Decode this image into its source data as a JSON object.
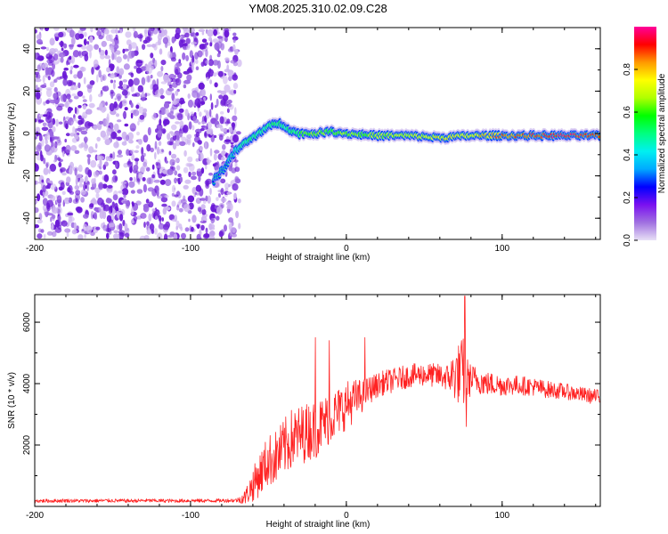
{
  "title": "YM08.2025.310.02.09.C28",
  "colors": {
    "snr_line": "#ff2222",
    "speckle_dark": "#6a18d6",
    "speckle_light": "#cdb4f0",
    "axis": "#000000",
    "colormap": [
      "#e8e0f6",
      "#a070e0",
      "#7a10f0",
      "#0000ff",
      "#00aaff",
      "#00f0f0",
      "#00ff80",
      "#00ff00",
      "#b0ff00",
      "#ffff00",
      "#ff9900",
      "#ff0000",
      "#ff0099"
    ]
  },
  "chart_data": [
    {
      "type": "heatmap",
      "name": "spectrogram",
      "xlabel": "Height of straight line (km)",
      "ylabel": "Frequency (Hz)",
      "xlim": [
        -200,
        163
      ],
      "ylim": [
        -50,
        50
      ],
      "xticks": [
        -200,
        -100,
        0,
        100
      ],
      "xtick_labels": [
        "-200",
        "-100",
        "0",
        "100"
      ],
      "yticks": [
        -40,
        -20,
        0,
        20,
        40
      ],
      "ytick_labels": [
        "-40",
        "-20",
        "0",
        "20",
        "40"
      ],
      "noise_region_x": [
        -200,
        -72
      ],
      "signal_track": {
        "x": [
          -85,
          -78,
          -72,
          -66,
          -60,
          -55,
          -50,
          -45,
          -40,
          -35,
          -30,
          -20,
          -10,
          0,
          20,
          40,
          60,
          80,
          100,
          120,
          140,
          163
        ],
        "freq": [
          -22,
          -16,
          -9,
          -5,
          -2,
          1,
          3,
          5,
          4,
          1,
          0,
          0,
          1,
          0,
          -1,
          -1,
          -2,
          -1,
          -1,
          -1,
          -1,
          -1
        ],
        "amplitude": [
          0.25,
          0.3,
          0.35,
          0.45,
          0.5,
          0.45,
          0.5,
          0.5,
          0.45,
          0.5,
          0.55,
          0.65,
          0.6,
          0.65,
          0.65,
          0.7,
          0.75,
          0.75,
          0.85,
          0.9,
          0.95,
          0.9
        ]
      },
      "colorbar": {
        "label": "Normalized spectral amplitude",
        "range": [
          0.0,
          1.0
        ],
        "ticks": [
          0.0,
          0.2,
          0.4,
          0.6,
          0.8
        ],
        "tick_labels": [
          "0.0",
          "0.2",
          "0.4",
          "0.6",
          "0.8"
        ]
      }
    },
    {
      "type": "line",
      "name": "snr",
      "xlabel": "Height of straight line (km)",
      "ylabel": "SNR (10 * v/v)",
      "xlim": [
        -200,
        163
      ],
      "ylim": [
        0,
        6900
      ],
      "xticks": [
        -200,
        -100,
        0,
        100
      ],
      "xtick_labels": [
        "-200",
        "-100",
        "0",
        "100"
      ],
      "yticks": [
        2000,
        4000,
        6000
      ],
      "ytick_labels": [
        "2000",
        "4000",
        "6000"
      ],
      "series": [
        {
          "name": "SNR",
          "x": [
            -200,
            -190,
            -180,
            -170,
            -160,
            -150,
            -140,
            -130,
            -120,
            -110,
            -100,
            -90,
            -80,
            -70,
            -65,
            -60,
            -55,
            -50,
            -45,
            -40,
            -35,
            -30,
            -25,
            -20,
            -15,
            -10,
            -5,
            0,
            5,
            10,
            15,
            20,
            25,
            30,
            40,
            50,
            60,
            65,
            70,
            75,
            78,
            80,
            85,
            90,
            100,
            110,
            120,
            130,
            140,
            150,
            163
          ],
          "values": [
            180,
            180,
            190,
            180,
            185,
            190,
            180,
            190,
            185,
            180,
            190,
            185,
            190,
            200,
            300,
            700,
            1100,
            1500,
            1600,
            1900,
            2200,
            2300,
            2450,
            2500,
            2700,
            2900,
            3100,
            3300,
            3450,
            3600,
            3800,
            3950,
            4050,
            4100,
            4250,
            4300,
            4250,
            4200,
            4300,
            4350,
            4100,
            4150,
            4100,
            4000,
            3950,
            3950,
            3900,
            3800,
            3750,
            3650,
            3550
          ],
          "noise_amplitude": [
            60,
            60,
            60,
            60,
            60,
            60,
            60,
            60,
            60,
            60,
            60,
            60,
            60,
            70,
            250,
            550,
            750,
            850,
            900,
            950,
            1000,
            1000,
            950,
            950,
            900,
            850,
            800,
            800,
            700,
            550,
            450,
            400,
            400,
            400,
            380,
            380,
            400,
            450,
            900,
            1200,
            700,
            500,
            450,
            400,
            350,
            320,
            300,
            280,
            260,
            250,
            250
          ],
          "spikes": [
            {
              "x": -20,
              "value": 5500
            },
            {
              "x": -11,
              "value": 5400
            },
            {
              "x": 12,
              "value": 5500
            },
            {
              "x": 76,
              "value": 6850
            },
            {
              "x": 77,
              "value": 2600
            }
          ]
        }
      ]
    }
  ]
}
